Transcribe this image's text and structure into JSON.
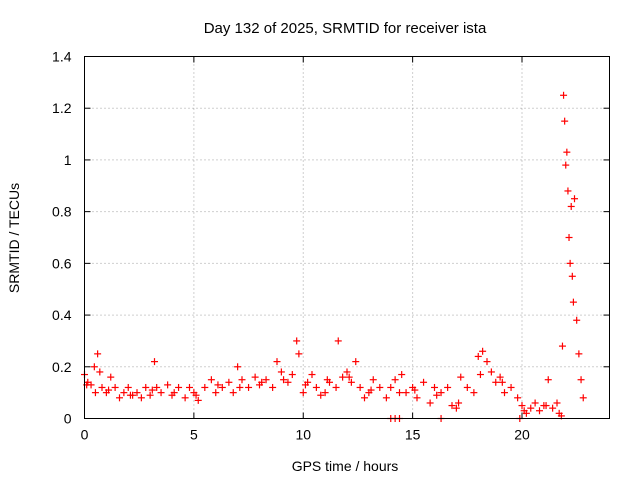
{
  "chart_data": {
    "type": "scatter",
    "title": "Day 132 of 2025, SRMTID for receiver ista",
    "xlabel": "GPS time / hours",
    "ylabel": "SRMTID / TECUs",
    "xlim": [
      0,
      24
    ],
    "ylim": [
      0,
      1.4
    ],
    "xticks": [
      0,
      5,
      10,
      15,
      20
    ],
    "xtick_labels": [
      "0",
      "5",
      "10",
      "15",
      "20"
    ],
    "yticks": [
      0,
      0.2,
      0.4,
      0.6,
      0.8,
      1.0,
      1.2,
      1.4
    ],
    "ytick_labels": [
      "0",
      "0.2",
      "0.4",
      "0.6",
      "0.8",
      "1",
      "1.2",
      "1.4"
    ],
    "grid": true,
    "marker": "+",
    "marker_color": "#ff0000",
    "series": [
      {
        "name": "SRMTID",
        "x": [
          0.0,
          0.15,
          0.3,
          0.45,
          0.6,
          0.7,
          0.8,
          1.0,
          1.2,
          1.4,
          1.6,
          1.8,
          2.0,
          2.2,
          2.4,
          2.6,
          2.8,
          3.0,
          3.2,
          3.3,
          3.5,
          3.8,
          4.0,
          4.3,
          4.6,
          4.8,
          5.0,
          5.2,
          5.5,
          5.8,
          6.0,
          6.3,
          6.6,
          6.8,
          7.0,
          7.2,
          7.5,
          7.8,
          8.0,
          8.3,
          8.6,
          8.8,
          9.0,
          9.3,
          9.5,
          9.7,
          9.8,
          10.0,
          10.2,
          10.4,
          10.6,
          10.8,
          11.0,
          11.2,
          11.5,
          11.6,
          11.8,
          12.0,
          12.2,
          12.4,
          12.6,
          12.8,
          13.0,
          13.2,
          13.5,
          13.8,
          14.0,
          14.2,
          14.4,
          14.5,
          14.7,
          15.0,
          15.2,
          15.5,
          15.8,
          16.0,
          16.3,
          16.6,
          16.8,
          17.0,
          17.2,
          17.5,
          17.8,
          18.0,
          18.2,
          18.4,
          18.6,
          18.8,
          19.0,
          19.2,
          19.5,
          19.8,
          20.0,
          20.2,
          20.4,
          20.6,
          20.8,
          21.0,
          21.2,
          21.4,
          21.6,
          21.7,
          21.8,
          21.85,
          21.9,
          21.95,
          22.0,
          22.05,
          22.1,
          22.15,
          22.2,
          22.25,
          22.3,
          22.35,
          22.4,
          22.5,
          22.6,
          22.7,
          22.8,
          14.0,
          14.2,
          14.4,
          16.3,
          19.9,
          0.1,
          0.5,
          1.1,
          2.1,
          3.1,
          4.1,
          5.1,
          6.1,
          7.1,
          8.1,
          9.1,
          10.1,
          11.1,
          12.1,
          13.1,
          15.1,
          16.1,
          17.1,
          18.1,
          19.1,
          20.1,
          21.1
        ],
        "y": [
          0.17,
          0.14,
          0.13,
          0.2,
          0.25,
          0.18,
          0.12,
          0.1,
          0.16,
          0.12,
          0.08,
          0.1,
          0.12,
          0.09,
          0.1,
          0.08,
          0.12,
          0.09,
          0.22,
          0.12,
          0.1,
          0.13,
          0.09,
          0.12,
          0.08,
          0.12,
          0.1,
          0.07,
          0.12,
          0.15,
          0.1,
          0.12,
          0.14,
          0.1,
          0.2,
          0.15,
          0.12,
          0.16,
          0.13,
          0.15,
          0.12,
          0.22,
          0.18,
          0.14,
          0.17,
          0.3,
          0.25,
          0.1,
          0.14,
          0.17,
          0.12,
          0.09,
          0.1,
          0.14,
          0.12,
          0.3,
          0.16,
          0.18,
          0.14,
          0.22,
          0.12,
          0.08,
          0.1,
          0.15,
          0.12,
          0.08,
          0.12,
          0.15,
          0.1,
          0.17,
          0.1,
          0.12,
          0.08,
          0.14,
          0.06,
          0.12,
          0.1,
          0.12,
          0.05,
          0.04,
          0.16,
          0.12,
          0.1,
          0.24,
          0.26,
          0.22,
          0.18,
          0.14,
          0.16,
          0.1,
          0.12,
          0.08,
          0.05,
          0.02,
          0.04,
          0.06,
          0.03,
          0.05,
          0.15,
          0.04,
          0.06,
          0.02,
          0.01,
          0.28,
          1.25,
          1.15,
          0.98,
          1.03,
          0.88,
          0.7,
          0.6,
          0.82,
          0.55,
          0.45,
          0.85,
          0.38,
          0.25,
          0.15,
          0.08,
          0.0,
          0.0,
          0.0,
          0.0,
          0.0,
          0.13,
          0.1,
          0.11,
          0.09,
          0.11,
          0.1,
          0.09,
          0.13,
          0.12,
          0.14,
          0.15,
          0.13,
          0.15,
          0.16,
          0.11,
          0.11,
          0.09,
          0.06,
          0.17,
          0.14,
          0.03,
          0.05
        ]
      }
    ]
  }
}
